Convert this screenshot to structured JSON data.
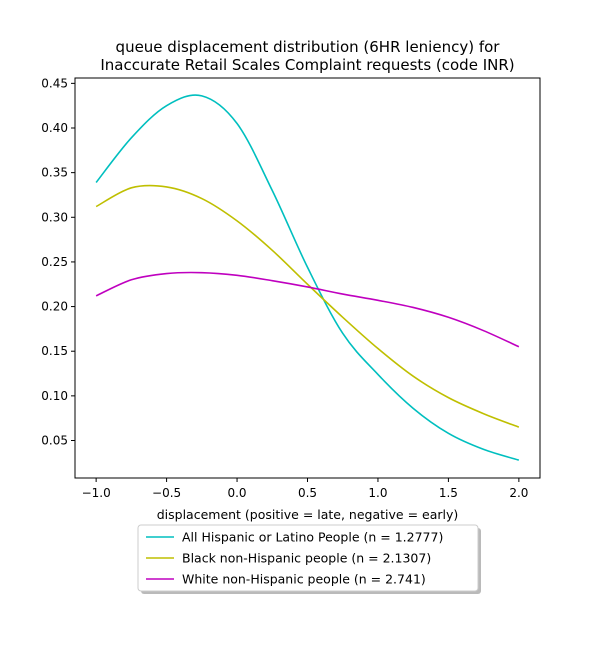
{
  "chart_data": {
    "type": "line",
    "title_lines": [
      "queue displacement distribution (6HR leniency) for",
      "Inaccurate Retail Scales Complaint  requests (code INR)"
    ],
    "xlabel": "displacement (positive = late, negative = early)",
    "ylabel": "",
    "xlim": [
      -1.15,
      2.15
    ],
    "ylim": [
      0.008,
      0.456
    ],
    "x_ticks": [
      -1.0,
      -0.5,
      0.0,
      0.5,
      1.0,
      1.5,
      2.0
    ],
    "x_tick_labels": [
      "−1.0",
      "−0.5",
      "0.0",
      "0.5",
      "1.0",
      "1.5",
      "2.0"
    ],
    "y_ticks": [
      0.05,
      0.1,
      0.15,
      0.2,
      0.25,
      0.3,
      0.35,
      0.4,
      0.45
    ],
    "y_tick_labels": [
      "0.05",
      "0.10",
      "0.15",
      "0.20",
      "0.25",
      "0.30",
      "0.35",
      "0.40",
      "0.45"
    ],
    "grid": false,
    "legend_position": "below plot",
    "x": [
      -1.0,
      -0.75,
      -0.5,
      -0.25,
      0.0,
      0.25,
      0.5,
      0.75,
      1.0,
      1.25,
      1.5,
      1.75,
      2.0
    ],
    "series": [
      {
        "name": "All Hispanic or Latino People (n = 1.2777)",
        "color": "#00bfbf",
        "values": [
          0.339,
          0.389,
          0.425,
          0.436,
          0.405,
          0.33,
          0.244,
          0.17,
          0.124,
          0.086,
          0.058,
          0.04,
          0.028
        ]
      },
      {
        "name": "Black non-Hispanic people (n = 2.1307)",
        "color": "#bfbf00",
        "values": [
          0.312,
          0.333,
          0.334,
          0.321,
          0.296,
          0.263,
          0.225,
          0.188,
          0.153,
          0.122,
          0.098,
          0.08,
          0.065
        ]
      },
      {
        "name": "White non-Hispanic people (n = 2.741)",
        "color": "#bf00bf",
        "values": [
          0.212,
          0.23,
          0.237,
          0.238,
          0.235,
          0.229,
          0.222,
          0.214,
          0.207,
          0.199,
          0.188,
          0.173,
          0.155
        ]
      }
    ]
  }
}
